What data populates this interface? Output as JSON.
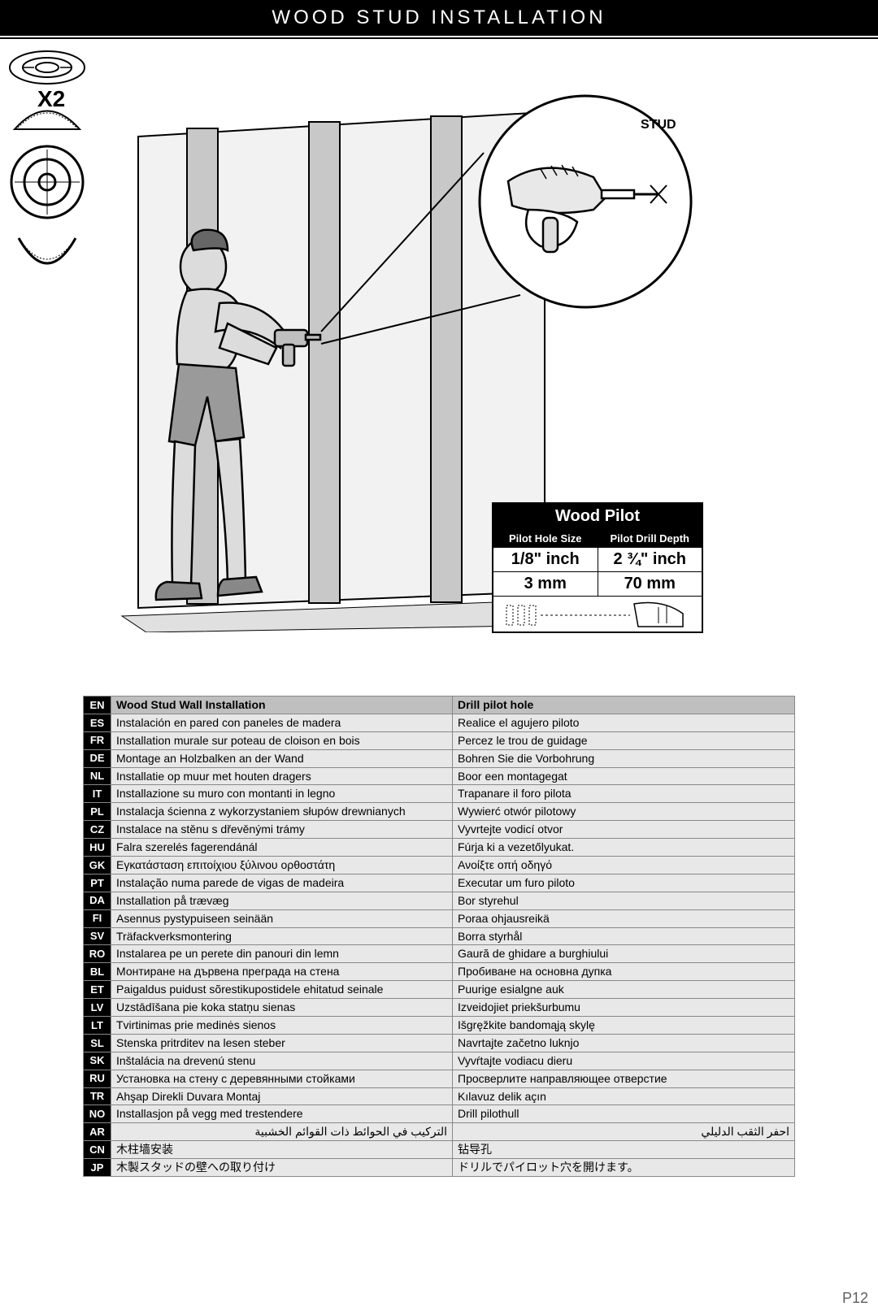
{
  "header": {
    "title": "WOOD STUD INSTALLATION"
  },
  "hardware": {
    "qty_label": "X2"
  },
  "pilot_box": {
    "title": "Wood Pilot",
    "col1_header": "Pilot Hole Size",
    "col2_header": "Pilot Drill Depth",
    "size_in": "1/8\" inch",
    "depth_in": "2 ¾\" inch",
    "size_mm": "3 mm",
    "depth_mm": "70 mm"
  },
  "lang_rows": [
    {
      "code": "EN",
      "left": "Wood Stud Wall Installation",
      "right": "Drill pilot hole"
    },
    {
      "code": "ES",
      "left": "Instalación en pared con paneles de madera",
      "right": "Realice el agujero piloto"
    },
    {
      "code": "FR",
      "left": "Installation murale sur poteau de cloison en bois",
      "right": "Percez le trou de guidage"
    },
    {
      "code": "DE",
      "left": "Montage an Holzbalken an der Wand",
      "right": "Bohren Sie die Vorbohrung"
    },
    {
      "code": "NL",
      "left": "Installatie op muur met houten dragers",
      "right": "Boor een montagegat"
    },
    {
      "code": "IT",
      "left": "Installazione su muro con montanti in legno",
      "right": "Trapanare il foro pilota"
    },
    {
      "code": "PL",
      "left": "Instalacja ścienna z wykorzystaniem słupów drewnianych",
      "right": "Wywierć otwór pilotowy"
    },
    {
      "code": "CZ",
      "left": "Instalace na stěnu s dřevěnými trámy",
      "right": "Vyvrtejte vodicí otvor"
    },
    {
      "code": "HU",
      "left": "Falra szerelés fagerendánál",
      "right": "Fúrja ki a vezetőlyukat."
    },
    {
      "code": "GK",
      "left": "Εγκατάσταση επιτοίχιου ξύλινου ορθοστάτη",
      "right": "Ανοίξτε οπή οδηγό"
    },
    {
      "code": "PT",
      "left": "Instalação numa parede de vigas de madeira",
      "right": "Executar um furo piloto"
    },
    {
      "code": "DA",
      "left": "Installation på trævæg",
      "right": "Bor styrehul"
    },
    {
      "code": "FI",
      "left": "Asennus pystypuiseen seinään",
      "right": "Poraa ohjausreikä"
    },
    {
      "code": "SV",
      "left": "Träfackverksmontering",
      "right": "Borra styrhål"
    },
    {
      "code": "RO",
      "left": "Instalarea pe un perete din panouri din lemn",
      "right": "Gaură de ghidare a burghiului"
    },
    {
      "code": "BL",
      "left": "Монтиране на дървена преграда на стена",
      "right": "Пробиване на основна дупка"
    },
    {
      "code": "ET",
      "left": "Paigaldus puidust sõrestikupostidele ehitatud seinale",
      "right": "Puurige esialgne auk"
    },
    {
      "code": "LV",
      "left": "Uzstādīšana pie koka statņu sienas",
      "right": "Izveidojiet priekšurbumu"
    },
    {
      "code": "LT",
      "left": "Tvirtinimas prie medinės sienos",
      "right": "Išgręžkite bandomąją skylę"
    },
    {
      "code": "SL",
      "left": "Stenska pritrditev na lesen steber",
      "right": "Navrtajte začetno luknjo"
    },
    {
      "code": "SK",
      "left": "Inštalácia na drevenú stenu",
      "right": "Vyvŕtajte vodiacu dieru"
    },
    {
      "code": "RU",
      "left": "Установка на стену с деревянными стойками",
      "right": "Просверлите направляющее отверстие"
    },
    {
      "code": "TR",
      "left": "Ahşap Direkli Duvara Montaj",
      "right": "Kılavuz delik açın"
    },
    {
      "code": "NO",
      "left": "Installasjon på vegg med trestendere",
      "right": "Drill pilothull"
    },
    {
      "code": "AR",
      "left": "التركيب في الحوائط ذات القوائم الخشبية",
      "right": "احفر الثقب الدليلي",
      "rtl": true
    },
    {
      "code": "CN",
      "left": "木柱墙安装",
      "right": "钻导孔"
    },
    {
      "code": "JP",
      "left": "木製スタッドの壁への取り付け",
      "right": "ドリルでパイロット穴を開けます。"
    }
  ],
  "page_number": "P12",
  "colors": {
    "black": "#000000",
    "white": "#ffffff",
    "row_bg": "#e8e8e8",
    "header_row_bg": "#bfbfbf",
    "person_fill": "#d9d9d9",
    "stud_fill": "#c0c0c0",
    "panel_fill": "#f0f0f0"
  }
}
